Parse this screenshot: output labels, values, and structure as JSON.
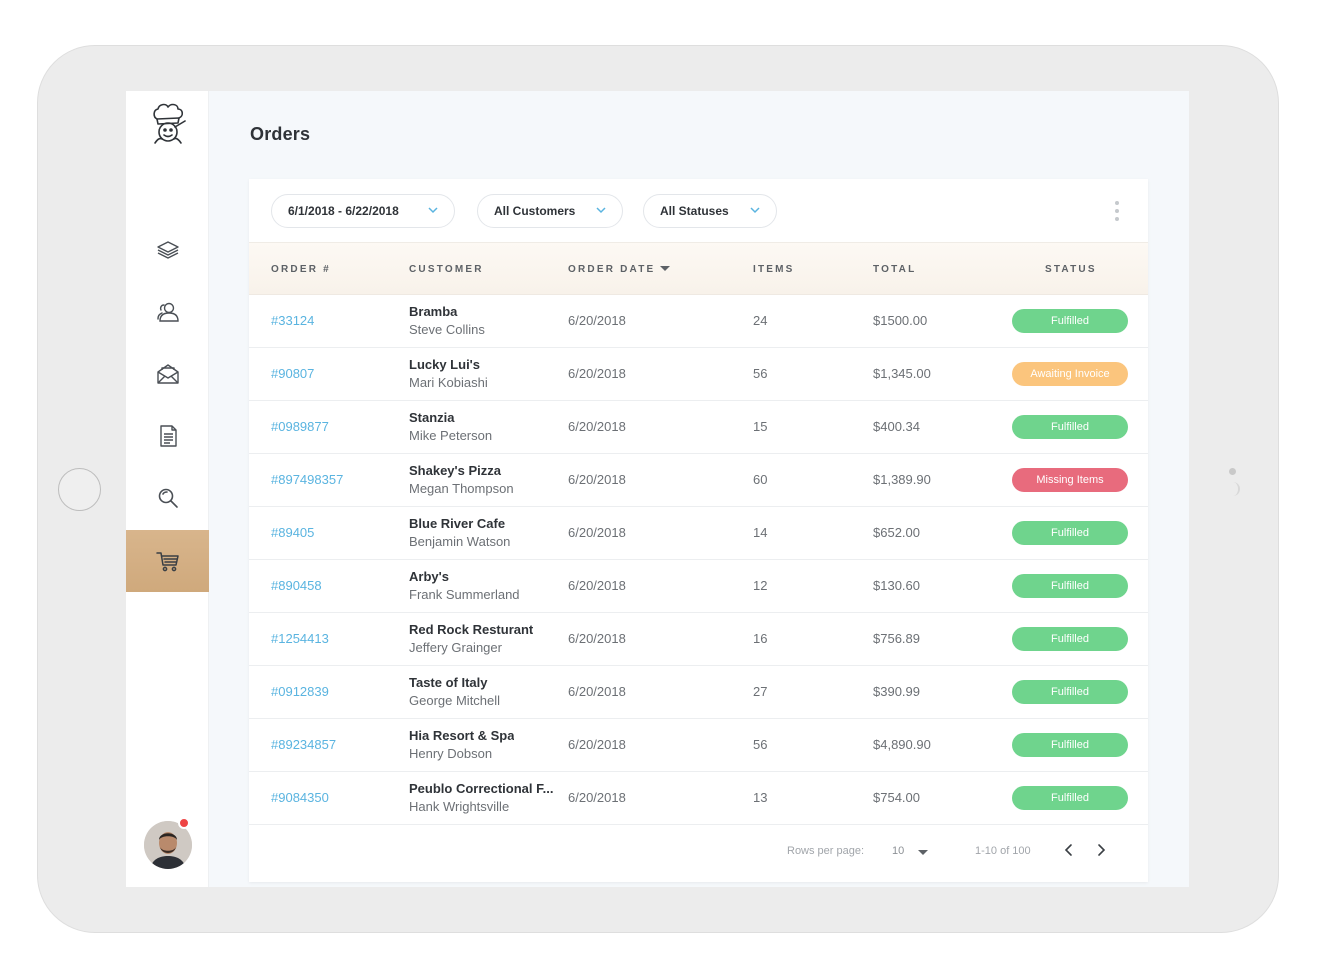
{
  "page": {
    "title": "Orders"
  },
  "filters": {
    "date_range": "6/1/2018 - 6/22/2018",
    "customers": "All Customers",
    "statuses": "All Statuses"
  },
  "table": {
    "headers": {
      "order": "ORDER #",
      "customer": "CUSTOMER",
      "order_date": "ORDER DATE",
      "items": "ITEMS",
      "total": "TOTAL",
      "status": "STATUS"
    },
    "rows": [
      {
        "order": "#33124",
        "company": "Bramba",
        "person": "Steve Collins",
        "date": "6/20/2018",
        "items": "24",
        "total": "$1500.00",
        "status": "Fulfilled",
        "status_color": "#6fd48d"
      },
      {
        "order": "#90807",
        "company": "Lucky Lui's",
        "person": "Mari Kobiashi",
        "date": "6/20/2018",
        "items": "56",
        "total": "$1,345.00",
        "status": "Awaiting Invoice",
        "status_color": "#fbc57d"
      },
      {
        "order": "#0989877",
        "company": "Stanzia",
        "person": "Mike Peterson",
        "date": "6/20/2018",
        "items": "15",
        "total": "$400.34",
        "status": "Fulfilled",
        "status_color": "#6fd48d"
      },
      {
        "order": "#897498357",
        "company": "Shakey's Pizza",
        "person": "Megan Thompson",
        "date": "6/20/2018",
        "items": "60",
        "total": "$1,389.90",
        "status": "Missing Items",
        "status_color": "#e86b7d"
      },
      {
        "order": "#89405",
        "company": "Blue River Cafe",
        "person": "Benjamin Watson",
        "date": "6/20/2018",
        "items": "14",
        "total": "$652.00",
        "status": "Fulfilled",
        "status_color": "#6fd48d"
      },
      {
        "order": "#890458",
        "company": "Arby's",
        "person": "Frank Summerland",
        "date": "6/20/2018",
        "items": "12",
        "total": "$130.60",
        "status": "Fulfilled",
        "status_color": "#6fd48d"
      },
      {
        "order": "#1254413",
        "company": "Red Rock Resturant",
        "person": "Jeffery Grainger",
        "date": "6/20/2018",
        "items": "16",
        "total": "$756.89",
        "status": "Fulfilled",
        "status_color": "#6fd48d"
      },
      {
        "order": "#0912839",
        "company": "Taste of Italy",
        "person": "George Mitchell",
        "date": "6/20/2018",
        "items": "27",
        "total": "$390.99",
        "status": "Fulfilled",
        "status_color": "#6fd48d"
      },
      {
        "order": "#89234857",
        "company": "Hia Resort & Spa",
        "person": "Henry Dobson",
        "date": "6/20/2018",
        "items": "56",
        "total": "$4,890.90",
        "status": "Fulfilled",
        "status_color": "#6fd48d"
      },
      {
        "order": "#9084350",
        "company": "Peublo Correctional F...",
        "person": "Hank Wrightsville",
        "date": "6/20/2018",
        "items": "13",
        "total": "$754.00",
        "status": "Fulfilled",
        "status_color": "#6fd48d"
      }
    ]
  },
  "pagination": {
    "rows_per_page_label": "Rows per page:",
    "rows_per_page": "10",
    "range": "1-10 of 100"
  },
  "sidebar": {
    "items": [
      {
        "name": "layers-icon"
      },
      {
        "name": "users-icon"
      },
      {
        "name": "mail-icon"
      },
      {
        "name": "document-icon"
      },
      {
        "name": "search-icon"
      },
      {
        "name": "cart-icon",
        "active": true
      }
    ]
  },
  "colors": {
    "accent": "#d4b083",
    "link": "#5ab4e0",
    "fulfilled": "#6fd48d",
    "awaiting": "#fbc57d",
    "missing": "#e86b7d"
  }
}
